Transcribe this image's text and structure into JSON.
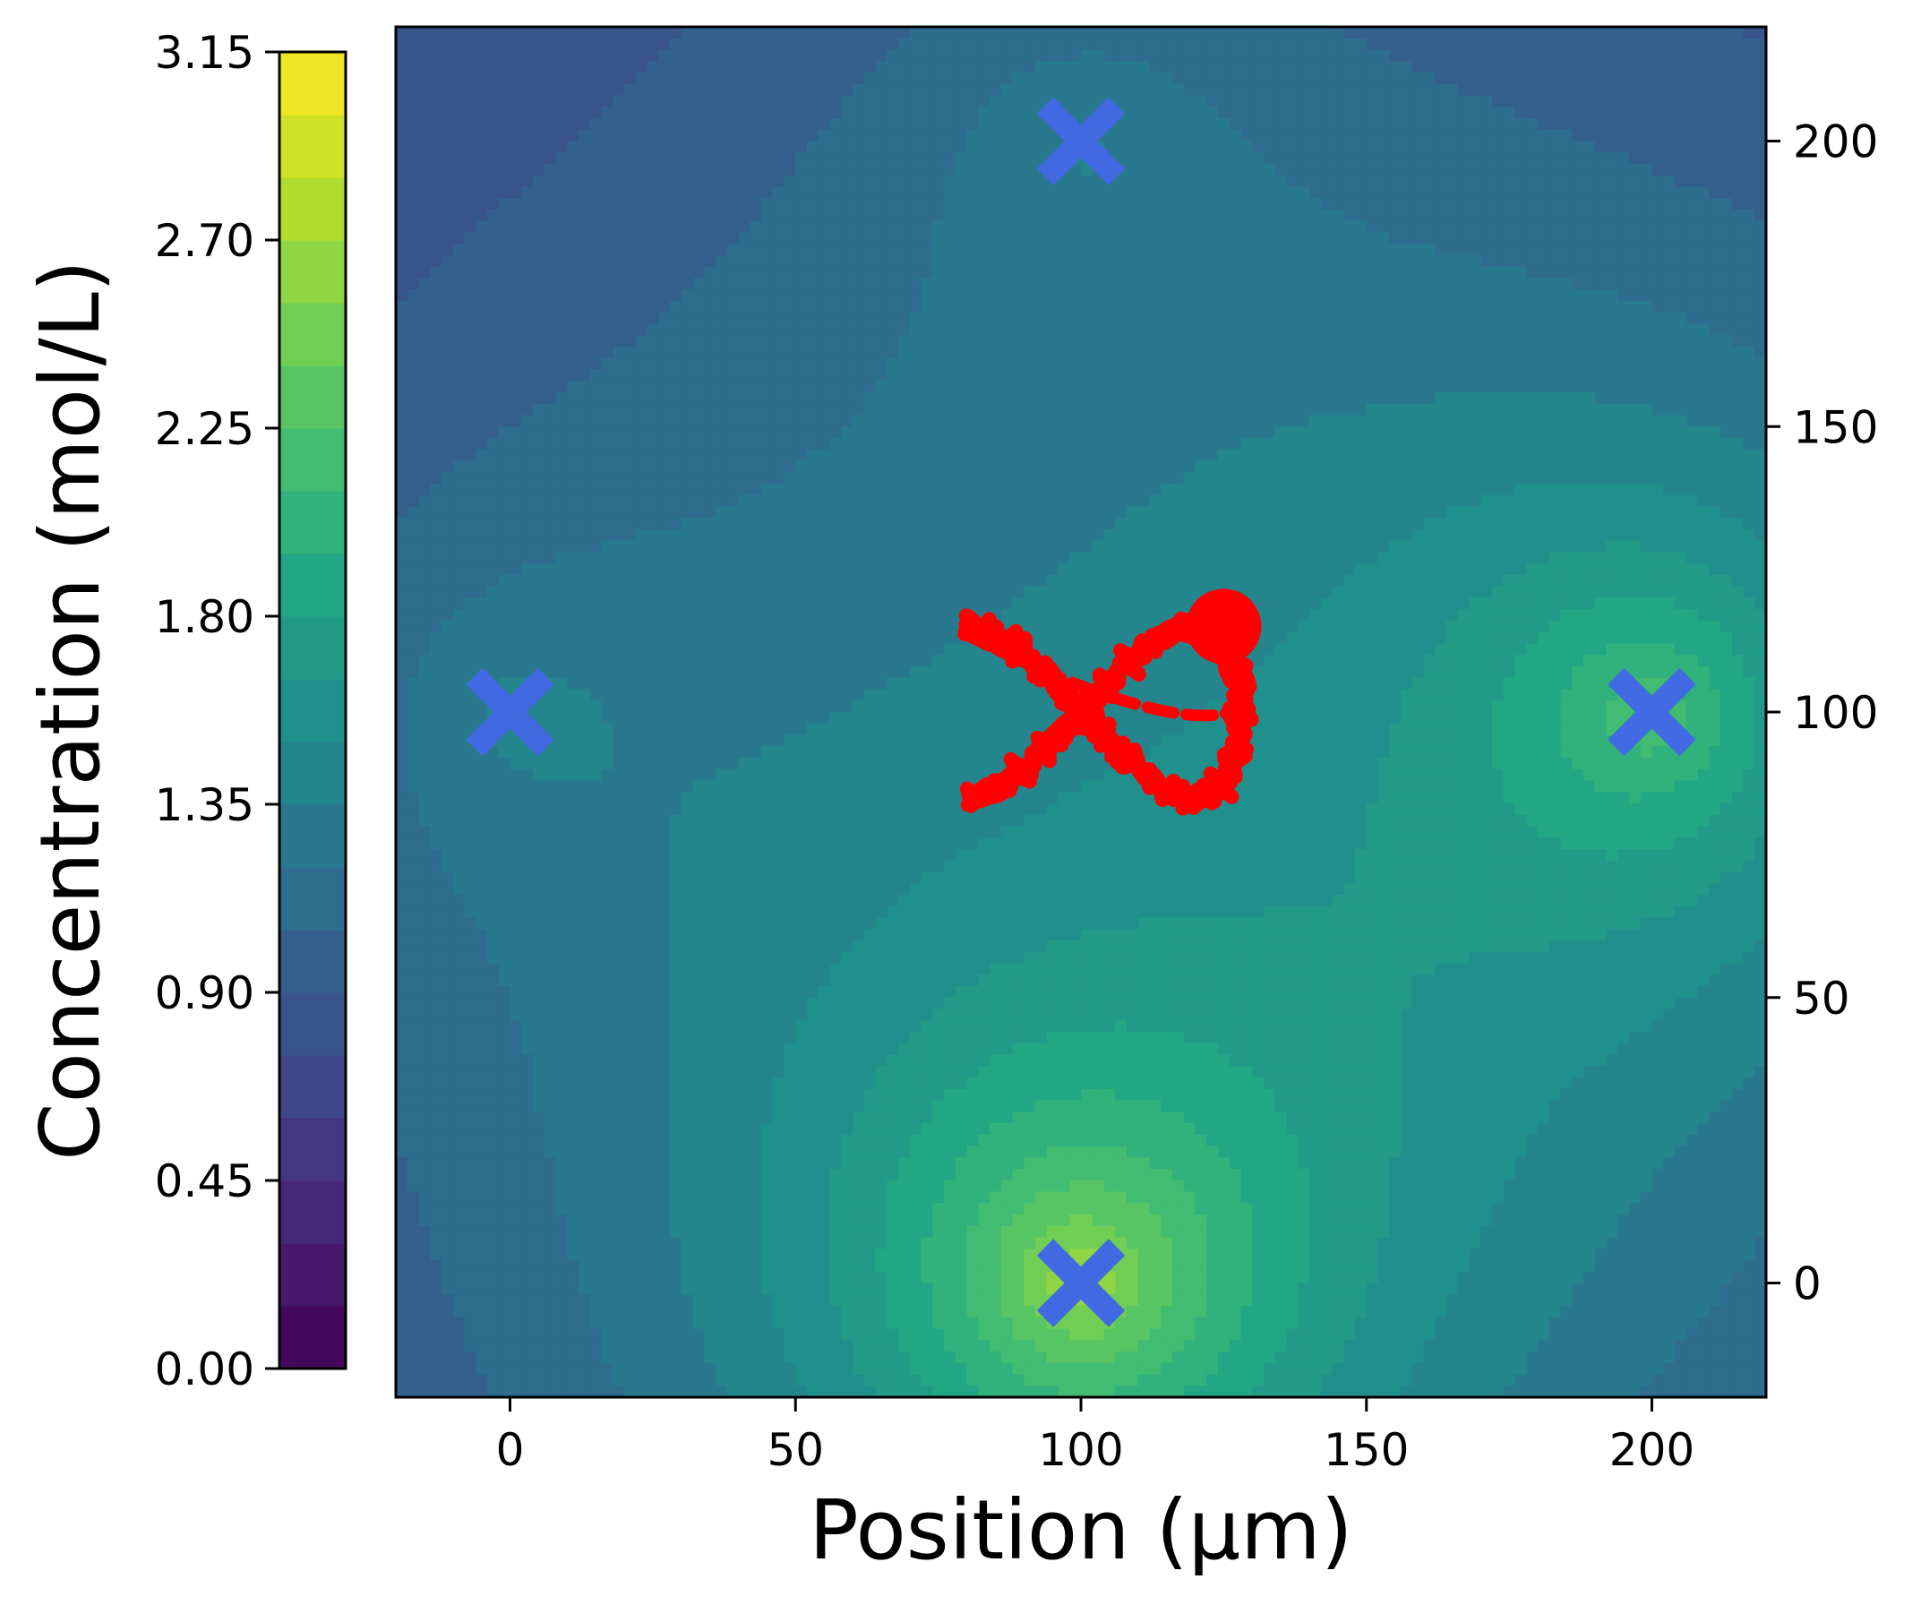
{
  "chart_data": {
    "type": "heatmap",
    "title": "",
    "xlabel": "Position (μm)",
    "ylabel": "",
    "xlim": [
      -20,
      220
    ],
    "ylim": [
      -20,
      220
    ],
    "x_ticks": [
      0,
      50,
      100,
      150,
      200
    ],
    "y_ticks": [
      0,
      50,
      100,
      150,
      200
    ],
    "y_axis_side": "right",
    "grid": false,
    "colormap": "viridis",
    "colorbar": {
      "label": "Concentration (mol/L)",
      "min": 0.0,
      "max": 3.15,
      "tick_values": [
        0.0,
        0.45,
        0.9,
        1.35,
        1.8,
        2.25,
        2.7,
        3.15
      ],
      "tick_labels": [
        "0.00",
        "0.45",
        "0.90",
        "1.35",
        "1.80",
        "2.25",
        "2.70",
        "3.15"
      ],
      "levels": 21,
      "position": "left"
    },
    "sources": {
      "marker": "x",
      "color": "#4169e1",
      "points": [
        {
          "x": 0,
          "y": 100
        },
        {
          "x": 100,
          "y": 200
        },
        {
          "x": 200,
          "y": 100
        },
        {
          "x": 100,
          "y": 0
        }
      ]
    },
    "trajectory": {
      "color": "#ff0000",
      "shape": "figure-eight",
      "center": {
        "x": 100,
        "y": 100
      },
      "end_point": {
        "x": 125,
        "y": 115
      },
      "dashed_segment": "closing arc from (120, 85) to (125, 115)"
    }
  }
}
